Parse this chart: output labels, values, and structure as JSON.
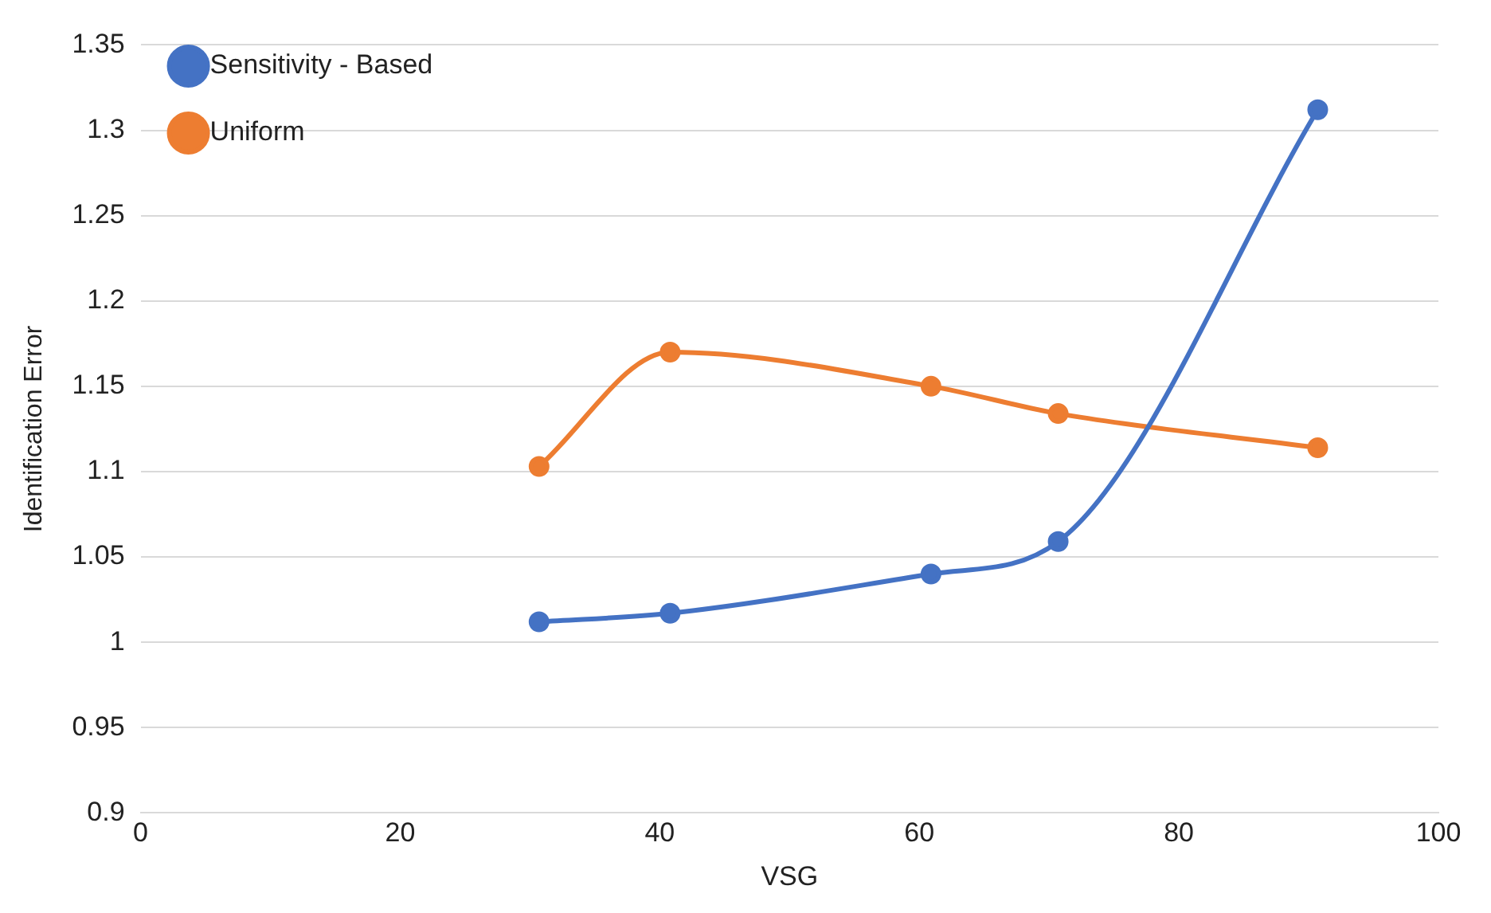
{
  "chart_data": {
    "type": "line",
    "xlabel": "VSG",
    "ylabel": "Identification Error",
    "xlim": [
      0,
      100
    ],
    "xticks": [
      0,
      20,
      40,
      60,
      80,
      100
    ],
    "ylim": [
      0.9,
      1.35
    ],
    "yticks": [
      0.9,
      0.95,
      1,
      1.05,
      1.1,
      1.15,
      1.2,
      1.25,
      1.3,
      1.35
    ],
    "grid": "y",
    "legend": "top left",
    "marker": "circle",
    "line_style": "solid",
    "series": [
      {
        "name": "Sensitivity - Based",
        "color": "#4472c4",
        "x": [
          30.7,
          40.8,
          60.9,
          70.7,
          90.7
        ],
        "values": [
          1.012,
          1.017,
          1.04,
          1.059,
          1.312
        ]
      },
      {
        "name": "Uniform",
        "color": "#ed7d31",
        "x": [
          30.7,
          40.8,
          60.9,
          70.7,
          90.7
        ],
        "values": [
          1.103,
          1.17,
          1.15,
          1.134,
          1.114
        ]
      }
    ]
  }
}
